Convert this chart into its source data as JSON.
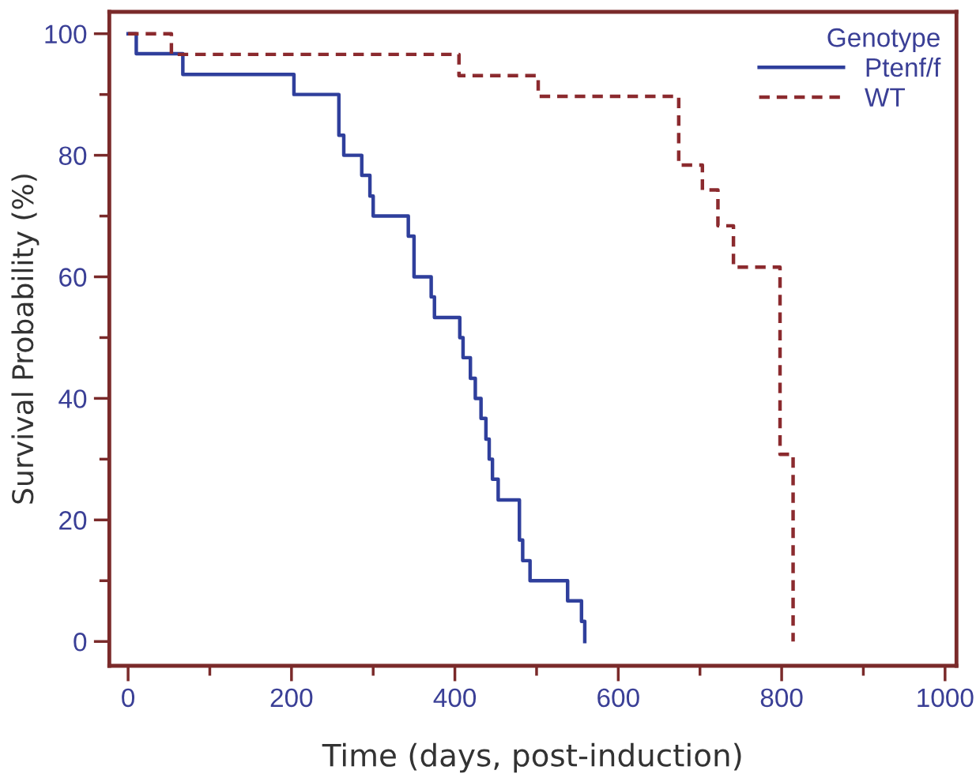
{
  "chart_data": {
    "type": "step",
    "xlabel": "Time (days, post-induction)",
    "ylabel": "Survival Probability (%)",
    "legend_title": "Genotype",
    "legend": "top right",
    "grid": false,
    "series": [
      {
        "name": "Ptenf/f",
        "color": "#2f3f9c",
        "line_style": "solid",
        "x": [
          0,
          10,
          67,
          203,
          258,
          264,
          286,
          296,
          300,
          343,
          350,
          371,
          375,
          406,
          410,
          419,
          425,
          432,
          438,
          442,
          446,
          453,
          479,
          483,
          492,
          538,
          555,
          559
        ],
        "values": [
          100,
          96.7,
          93.3,
          90,
          83.3,
          80,
          76.7,
          73.3,
          70,
          66.7,
          60,
          56.7,
          53.3,
          50,
          46.7,
          43.3,
          40,
          36.7,
          33.3,
          30,
          26.7,
          23.3,
          16.7,
          13.3,
          10,
          6.7,
          3.3,
          0
        ]
      },
      {
        "name": "WT",
        "color": "#8b2a2e",
        "line_style": "dashed",
        "x": [
          0,
          53,
          405,
          502,
          674,
          703,
          722,
          741,
          798,
          814
        ],
        "values": [
          100,
          96.6,
          93.1,
          89.7,
          78.4,
          74.3,
          68.4,
          61.6,
          30.8,
          0
        ]
      }
    ],
    "xlim": [
      -23,
      1014
    ],
    "ylim": [
      -4,
      103.6
    ],
    "xticks": [
      0,
      {
        "value": 100,
        "label": null
      },
      200,
      {
        "value": 300,
        "label": null
      },
      400,
      {
        "value": 500,
        "label": null
      },
      600,
      {
        "value": 700,
        "label": null
      },
      800,
      {
        "value": 900,
        "label": null
      },
      1000
    ],
    "yticks": [
      0,
      {
        "value": 10,
        "label": null
      },
      20,
      {
        "value": 30,
        "label": null
      },
      40,
      {
        "value": 50,
        "label": null
      },
      60,
      {
        "value": 70,
        "label": null
      },
      80,
      {
        "value": 90,
        "label": null
      },
      100
    ]
  }
}
